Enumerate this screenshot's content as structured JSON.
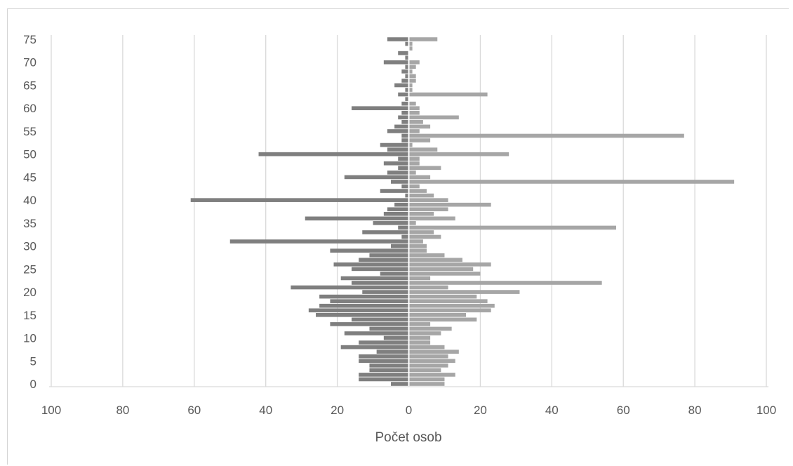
{
  "chart_data": {
    "type": "bar",
    "orientation": "horizontal",
    "xlabel": "Počet osob",
    "ylabel": "",
    "xlim": [
      -100,
      100
    ],
    "ylim": [
      0,
      75
    ],
    "x_ticks": [
      "100",
      "80",
      "60",
      "40",
      "20",
      "0",
      "20",
      "40",
      "60",
      "80",
      "100"
    ],
    "y_ticks": [
      "0",
      "5",
      "10",
      "15",
      "20",
      "25",
      "30",
      "35",
      "40",
      "45",
      "50",
      "55",
      "60",
      "65",
      "70",
      "75"
    ],
    "grid": "vertical",
    "legend": "none",
    "colors": {
      "left": "#7f7f7f",
      "right": "#a6a6a6",
      "grid": "#d9d9d9",
      "axis": "#d9d9d9"
    },
    "categories": [
      0,
      1,
      2,
      3,
      4,
      5,
      6,
      7,
      8,
      9,
      10,
      11,
      12,
      13,
      14,
      15,
      16,
      17,
      18,
      19,
      20,
      21,
      22,
      23,
      24,
      25,
      26,
      27,
      28,
      29,
      30,
      31,
      32,
      33,
      34,
      35,
      36,
      37,
      38,
      39,
      40,
      41,
      42,
      43,
      44,
      45,
      46,
      47,
      48,
      49,
      50,
      51,
      52,
      53,
      54,
      55,
      56,
      57,
      58,
      59,
      60,
      61,
      62,
      63,
      64,
      65,
      66,
      67,
      68,
      69,
      70,
      71,
      72,
      73,
      74,
      75
    ],
    "series": [
      {
        "side": "left",
        "values": [
          5,
          14,
          14,
          11,
          11,
          14,
          14,
          9,
          19,
          14,
          7,
          18,
          11,
          22,
          16,
          26,
          28,
          25,
          22,
          25,
          13,
          33,
          16,
          19,
          8,
          16,
          21,
          14,
          11,
          22,
          5,
          50,
          2,
          13,
          3,
          10,
          29,
          7,
          6,
          4,
          61,
          1,
          8,
          2,
          5,
          18,
          6,
          3,
          7,
          3,
          42,
          6,
          8,
          2,
          2,
          6,
          4,
          2,
          3,
          2,
          16,
          2,
          1,
          3,
          1,
          4,
          2,
          1,
          2,
          1,
          7,
          1,
          3,
          0,
          1,
          6
        ]
      },
      {
        "side": "right",
        "values": [
          10,
          10,
          13,
          9,
          11,
          13,
          11,
          14,
          10,
          6,
          6,
          9,
          12,
          6,
          19,
          16,
          23,
          24,
          22,
          19,
          31,
          11,
          54,
          6,
          20,
          18,
          23,
          15,
          10,
          5,
          5,
          4,
          9,
          7,
          58,
          2,
          13,
          7,
          11,
          23,
          11,
          7,
          5,
          3,
          91,
          6,
          2,
          9,
          3,
          3,
          28,
          8,
          1,
          6,
          77,
          3,
          6,
          4,
          14,
          3,
          3,
          2,
          0,
          22,
          1,
          1,
          2,
          2,
          1,
          2,
          3,
          0,
          0,
          1,
          1,
          8
        ]
      }
    ]
  }
}
